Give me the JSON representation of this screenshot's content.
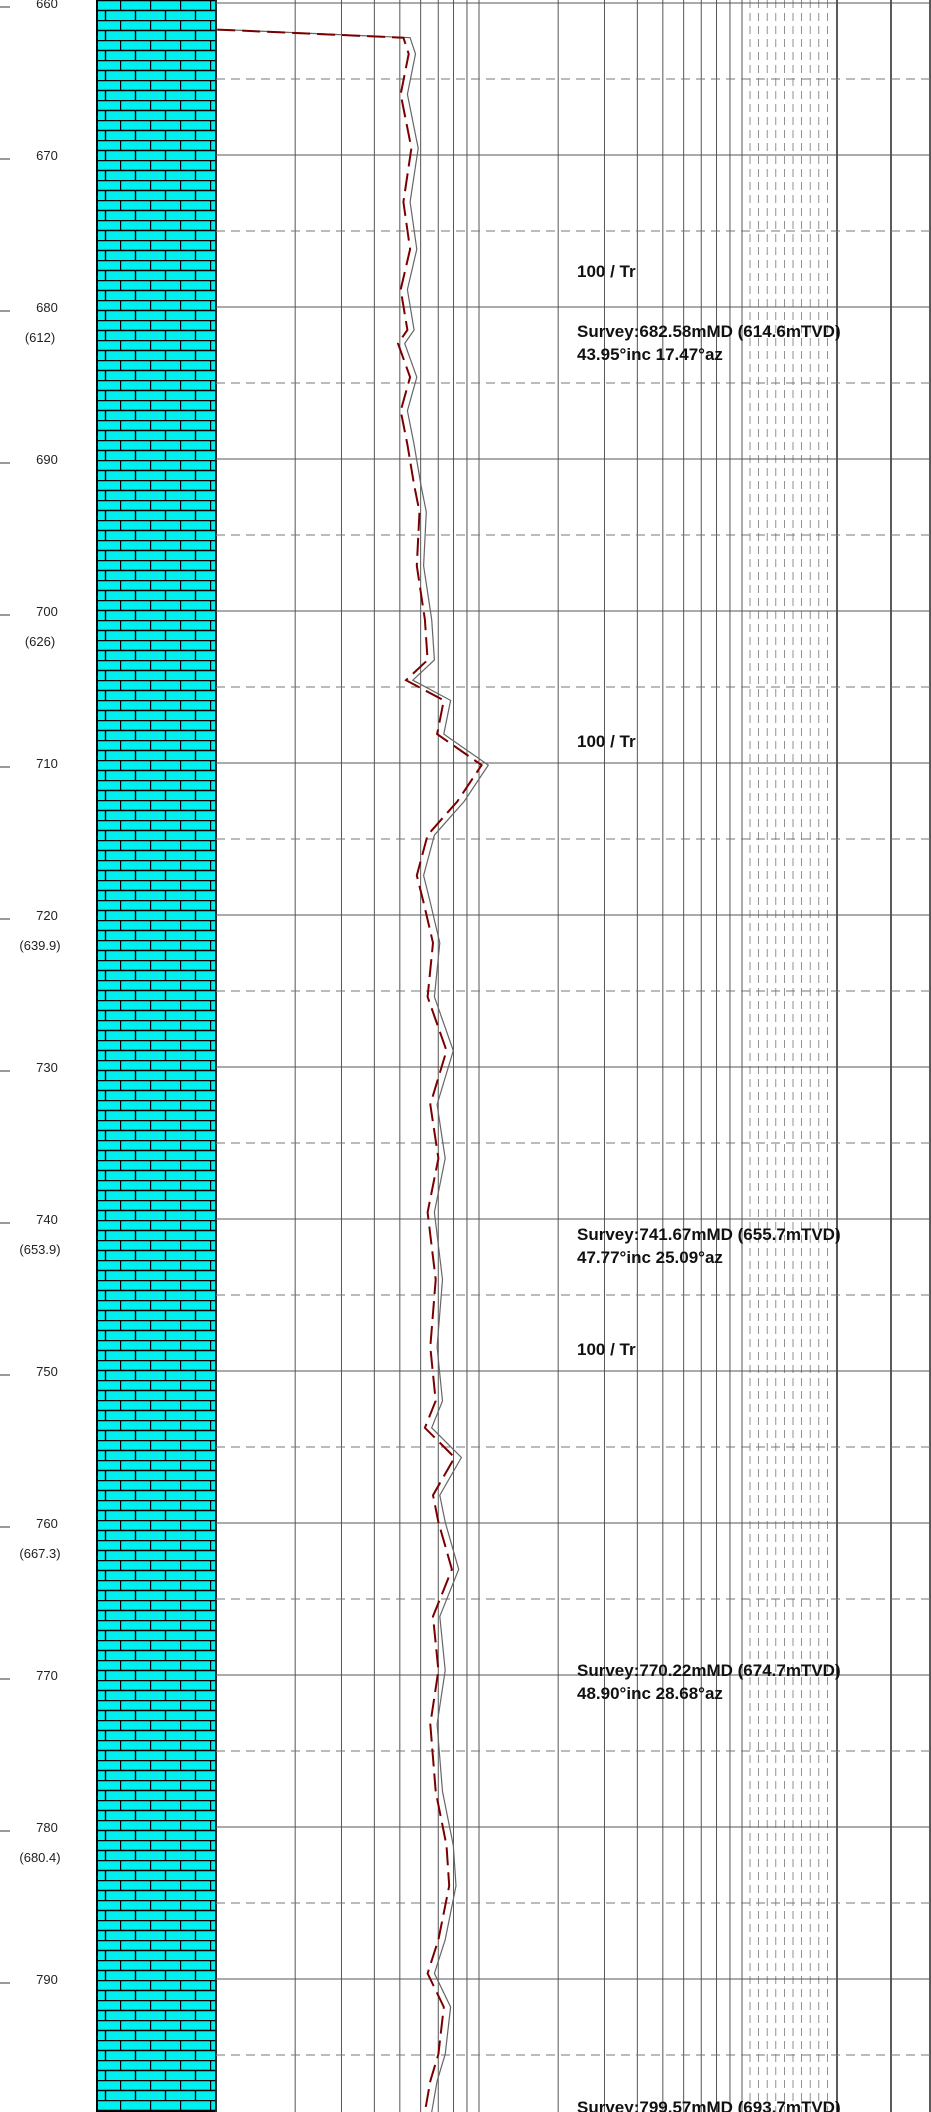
{
  "depth_labels": [
    "660",
    "670",
    "680",
    "690",
    "700",
    "710",
    "720",
    "730",
    "740",
    "750",
    "760",
    "770",
    "780",
    "790"
  ],
  "tvd_labels": [
    "(612)",
    "(626)",
    "(639.9)",
    "(653.9)",
    "(667.3)",
    "(680.4)"
  ],
  "annotations": [
    {
      "lines": [
        "100 / Tr"
      ]
    },
    {
      "lines": [
        "Survey:682.58mMD (614.6mTVD)",
        "43.95°inc 17.47°az"
      ]
    },
    {
      "lines": [
        "100 / Tr"
      ]
    },
    {
      "lines": [
        "Survey:741.67mMD (655.7mTVD)",
        "47.77°inc 25.09°az"
      ]
    },
    {
      "lines": [
        "100 / Tr"
      ]
    },
    {
      "lines": [
        "Survey:770.22mMD (674.7mTVD)",
        "48.90°inc 28.68°az"
      ]
    },
    {
      "lines": [
        "Survey:799.57mMD (693.7mTVD)"
      ]
    }
  ]
}
